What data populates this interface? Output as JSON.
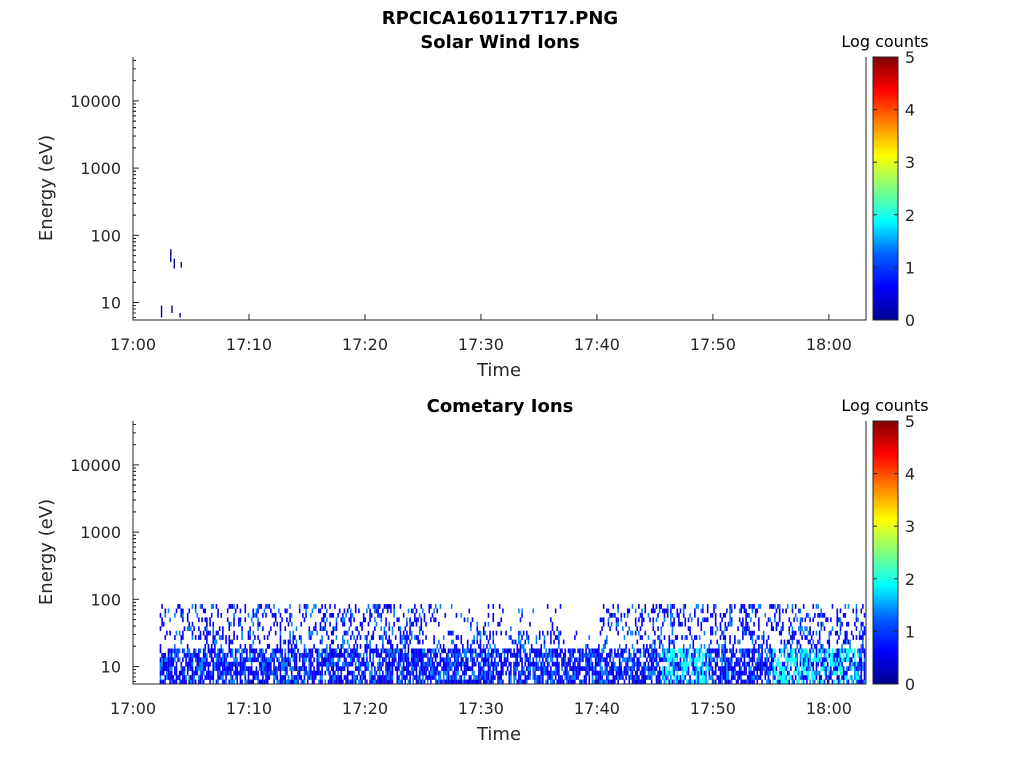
{
  "figure_title": "RPCICA160117T17.PNG",
  "colormap": [
    "#00008f",
    "#0000ff",
    "#0080ff",
    "#00ffff",
    "#80ff80",
    "#ffff00",
    "#ff8000",
    "#ff0000",
    "#800000"
  ],
  "chart_data": [
    {
      "type": "heatmap",
      "title": "Solar Wind Ions",
      "xlabel": "Time",
      "ylabel": "Energy (eV)",
      "x_ticks": [
        "17:00",
        "17:10",
        "17:20",
        "17:30",
        "17:40",
        "17:50",
        "18:00"
      ],
      "xlim_minutes": [
        0,
        63.2
      ],
      "y_ticks": [
        10,
        100,
        1000,
        10000
      ],
      "y_tick_labels": [
        "10",
        "100",
        "1000",
        "10000"
      ],
      "y_scale": "log",
      "ylim": [
        5.5,
        45000
      ],
      "colorbar": {
        "label": "Log counts",
        "range": [
          0,
          5
        ],
        "ticks": [
          "0",
          "1",
          "2",
          "3",
          "4",
          "5"
        ]
      },
      "data_description_cells": [
        {
          "minute": 2.4,
          "energy_low": 6.0,
          "energy_high": 9.0,
          "log_counts": 0.2
        },
        {
          "minute": 3.3,
          "energy_low": 7.0,
          "energy_high": 9.0,
          "log_counts": 0.2
        },
        {
          "minute": 3.2,
          "energy_low": 40,
          "energy_high": 62,
          "log_counts": 0.2
        },
        {
          "minute": 3.5,
          "energy_low": 32,
          "energy_high": 45,
          "log_counts": 0.2
        },
        {
          "minute": 4.1,
          "energy_low": 33,
          "energy_high": 40,
          "log_counts": 0.2
        },
        {
          "minute": 4.0,
          "energy_low": 6.0,
          "energy_high": 7.0,
          "log_counts": 0.2
        }
      ]
    },
    {
      "type": "heatmap",
      "title": "Cometary Ions",
      "xlabel": "Time",
      "ylabel": "Energy (eV)",
      "x_ticks": [
        "17:00",
        "17:10",
        "17:20",
        "17:30",
        "17:40",
        "17:50",
        "18:00"
      ],
      "xlim_minutes": [
        0,
        63.2
      ],
      "y_ticks": [
        10,
        100,
        1000,
        10000
      ],
      "y_tick_labels": [
        "10",
        "100",
        "1000",
        "10000"
      ],
      "y_scale": "log",
      "ylim": [
        5.5,
        45000
      ],
      "colorbar": {
        "label": "Log counts",
        "range": [
          0,
          5
        ],
        "ticks": [
          "0",
          "1",
          "2",
          "3",
          "4",
          "5"
        ]
      },
      "activity": {
        "time_start_minutes": 2.3,
        "time_end_minutes": 63.0,
        "energy_min": 5.5,
        "energy_max": 85,
        "dense_band_energy": [
          5.5,
          18
        ],
        "typical_log_counts": [
          0.3,
          1.2
        ],
        "elevated_intervals_minutes": [
          [
            45.5,
            49.5
          ],
          [
            55.0,
            62.5
          ]
        ],
        "elevated_log_counts": 1.8
      }
    }
  ]
}
